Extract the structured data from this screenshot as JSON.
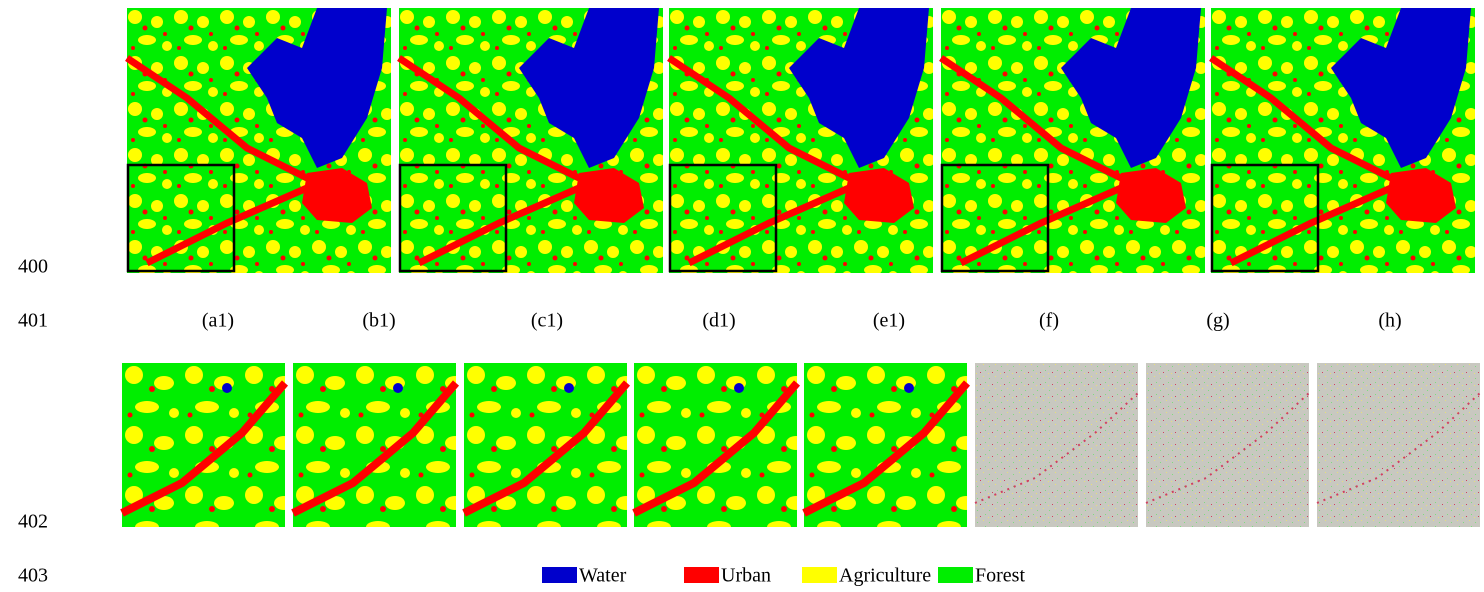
{
  "line_numbers": [
    "400",
    "401",
    "402",
    "403"
  ],
  "panel_labels": [
    "(a1)",
    "(b1)",
    "(c1)",
    "(d1)",
    "(e1)",
    "(f)",
    "(g)",
    "(h)"
  ],
  "legend": [
    {
      "label": "Water",
      "color": "#0000cc"
    },
    {
      "label": "Urban",
      "color": "#ff0000"
    },
    {
      "label": "Agriculture",
      "color": "#ffff00"
    },
    {
      "label": "Forest",
      "color": "#00ee00"
    }
  ]
}
